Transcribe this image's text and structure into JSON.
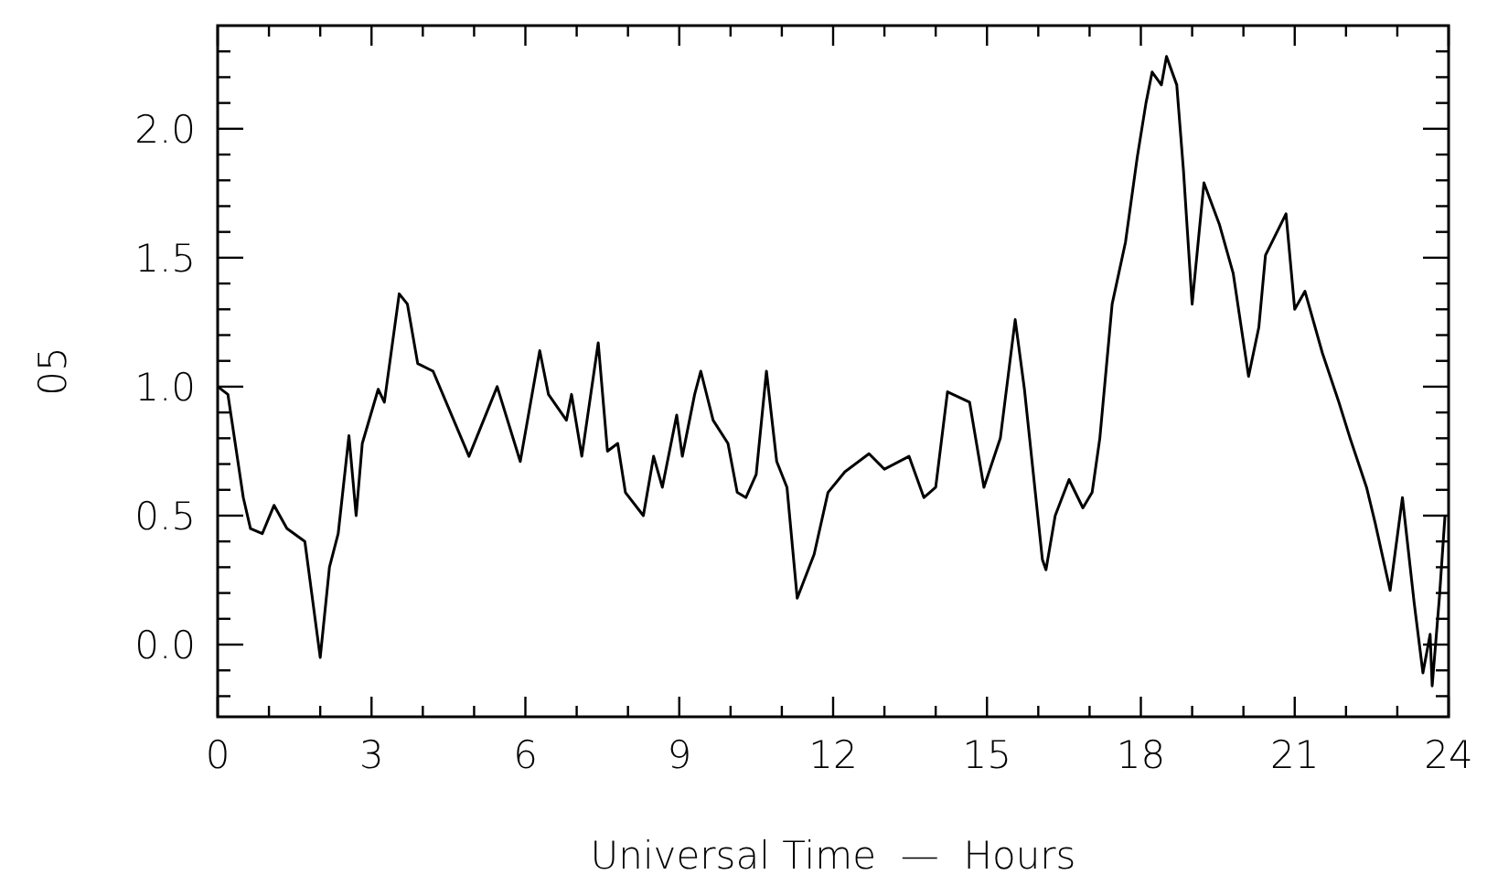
{
  "chart_data": {
    "type": "line",
    "xlabel": "Universal Time  —  Hours",
    "ylabel": "05",
    "xlim": [
      0,
      24
    ],
    "ylim": [
      -0.28,
      2.4
    ],
    "xticks": [
      0,
      {
        "value": 1,
        "label": null
      },
      {
        "value": 2,
        "label": null
      },
      3,
      {
        "value": 4,
        "label": null
      },
      {
        "value": 5,
        "label": null
      },
      6,
      {
        "value": 7,
        "label": null
      },
      {
        "value": 8,
        "label": null
      },
      9,
      {
        "value": 10,
        "label": null
      },
      {
        "value": 11,
        "label": null
      },
      12,
      {
        "value": 13,
        "label": null
      },
      {
        "value": 14,
        "label": null
      },
      15,
      {
        "value": 16,
        "label": null
      },
      {
        "value": 17,
        "label": null
      },
      18,
      {
        "value": 19,
        "label": null
      },
      {
        "value": 20,
        "label": null
      },
      21,
      {
        "value": 22,
        "label": null
      },
      {
        "value": 23,
        "label": null
      },
      24
    ],
    "yticks": [
      {
        "value": -0.2,
        "label": null
      },
      {
        "value": -0.1,
        "label": null
      },
      {
        "value": 0,
        "label": "0.0"
      },
      {
        "value": 0.1,
        "label": null
      },
      {
        "value": 0.2,
        "label": null
      },
      {
        "value": 0.3,
        "label": null
      },
      {
        "value": 0.4,
        "label": null
      },
      {
        "value": 0.5,
        "label": "0.5"
      },
      {
        "value": 0.6,
        "label": null
      },
      {
        "value": 0.7,
        "label": null
      },
      {
        "value": 0.8,
        "label": null
      },
      {
        "value": 0.9,
        "label": null
      },
      {
        "value": 1,
        "label": "1.0"
      },
      {
        "value": 1.1,
        "label": null
      },
      {
        "value": 1.2,
        "label": null
      },
      {
        "value": 1.3,
        "label": null
      },
      {
        "value": 1.4,
        "label": null
      },
      {
        "value": 1.5,
        "label": "1.5"
      },
      {
        "value": 1.6,
        "label": null
      },
      {
        "value": 1.7,
        "label": null
      },
      {
        "value": 1.8,
        "label": null
      },
      {
        "value": 1.9,
        "label": null
      },
      {
        "value": 2,
        "label": "2.0"
      },
      {
        "value": 2.1,
        "label": null
      },
      {
        "value": 2.2,
        "label": null
      },
      {
        "value": 2.3,
        "label": null
      }
    ],
    "grid": false,
    "marker": "none",
    "line_style": "solid",
    "x": [
      0,
      0.2,
      0.5,
      0.64,
      0.87,
      1.1,
      1.35,
      1.7,
      2.0,
      2.18,
      2.35,
      2.56,
      2.7,
      2.82,
      3.13,
      3.25,
      3.54,
      3.7,
      3.9,
      4.2,
      4.56,
      4.9,
      5.45,
      5.9,
      6.28,
      6.45,
      6.8,
      6.9,
      7.1,
      7.42,
      7.6,
      7.8,
      7.95,
      8.3,
      8.5,
      8.67,
      8.95,
      9.06,
      9.3,
      9.42,
      9.66,
      9.95,
      10.13,
      10.3,
      10.5,
      10.7,
      10.9,
      11.1,
      11.3,
      11.63,
      11.9,
      12.23,
      12.7,
      13.0,
      13.48,
      13.77,
      14.0,
      14.23,
      14.66,
      14.94,
      15.26,
      15.55,
      15.73,
      16.08,
      16.15,
      16.33,
      16.6,
      16.87,
      17.05,
      17.2,
      17.44,
      17.7,
      17.93,
      18.1,
      18.22,
      18.4,
      18.5,
      18.7,
      18.83,
      19.0,
      19.23,
      19.53,
      19.8,
      20.1,
      20.3,
      20.43,
      20.83,
      21.0,
      21.2,
      21.54,
      21.86,
      22.08,
      22.4,
      22.57,
      22.86,
      23.1,
      23.33,
      23.5,
      23.64,
      23.68,
      23.82,
      23.93
    ],
    "series": [
      {
        "color": "#000000",
        "values": [
          1.0,
          0.97,
          0.57,
          0.45,
          0.43,
          0.54,
          0.45,
          0.4,
          -0.05,
          0.3,
          0.43,
          0.81,
          0.5,
          0.78,
          0.99,
          0.94,
          1.36,
          1.32,
          1.09,
          1.06,
          0.89,
          0.73,
          1.0,
          0.71,
          1.14,
          0.97,
          0.87,
          0.97,
          0.73,
          1.17,
          0.75,
          0.78,
          0.59,
          0.5,
          0.73,
          0.61,
          0.89,
          0.73,
          0.97,
          1.06,
          0.87,
          0.78,
          0.59,
          0.57,
          0.66,
          1.06,
          0.71,
          0.61,
          0.18,
          0.35,
          0.59,
          0.67,
          0.74,
          0.68,
          0.73,
          0.57,
          0.61,
          0.98,
          0.94,
          0.61,
          0.8,
          1.26,
          0.99,
          0.33,
          0.29,
          0.5,
          0.64,
          0.53,
          0.59,
          0.8,
          1.32,
          1.56,
          1.89,
          2.1,
          2.22,
          2.17,
          2.28,
          2.17,
          1.84,
          1.32,
          1.79,
          1.63,
          1.44,
          1.04,
          1.23,
          1.51,
          1.67,
          1.3,
          1.37,
          1.13,
          0.94,
          0.8,
          0.61,
          0.47,
          0.21,
          0.57,
          0.16,
          -0.11,
          0.04,
          -0.16,
          0.18,
          0.5
        ]
      }
    ]
  }
}
